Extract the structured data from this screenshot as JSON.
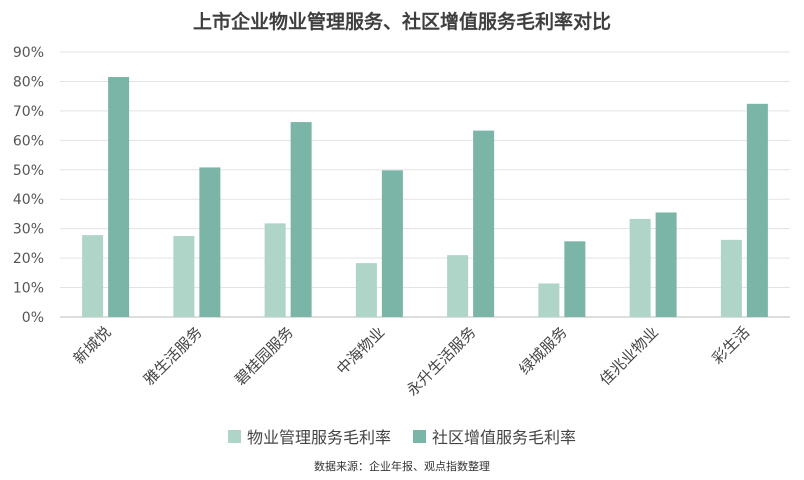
{
  "chart_data": {
    "type": "bar",
    "title": "上市企业物业管理服务、社区增值服务毛利率对比",
    "categories": [
      "新城悦",
      "雅生活服务",
      "碧桂园服务",
      "中海物业",
      "永升生活服务",
      "绿城服务",
      "佳兆业物业",
      "彩生活"
    ],
    "series": [
      {
        "name": "物业管理服务毛利率",
        "color": "#aed5c8",
        "values": [
          27.8,
          27.5,
          31.8,
          18.3,
          21.0,
          11.4,
          33.3,
          26.2
        ]
      },
      {
        "name": "社区增值服务毛利率",
        "color": "#7ab5a8",
        "values": [
          81.5,
          50.8,
          66.2,
          49.8,
          63.3,
          25.7,
          35.5,
          72.4
        ]
      }
    ],
    "ylim": [
      0,
      90
    ],
    "yticks": [
      "0%",
      "10%",
      "20%",
      "30%",
      "40%",
      "50%",
      "60%",
      "70%",
      "80%",
      "90%"
    ],
    "grid": true,
    "legend_position": "bottom",
    "source": "数据来源：企业年报、观点指数整理"
  }
}
